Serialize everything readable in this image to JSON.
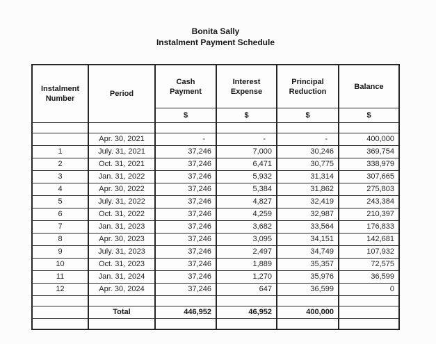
{
  "page": {
    "title_line1": "Bonita Sally",
    "title_line2": "Instalment Payment Schedule"
  },
  "colors": {
    "ink": "#1f1f1f",
    "border": "#262626",
    "background": "#fcfcfc"
  },
  "table": {
    "columns": [
      {
        "label": "Instalment Number"
      },
      {
        "label": "Period"
      },
      {
        "label": "Cash Payment"
      },
      {
        "label": "Interest Expense"
      },
      {
        "label": "Principal Reduction"
      },
      {
        "label": "Balance"
      }
    ],
    "currency_symbol": "$",
    "rows": [
      {
        "number": "",
        "period": "Apr. 30, 2021",
        "cash": "-",
        "interest": "-",
        "principal": "-",
        "balance": "400,000"
      },
      {
        "number": "1",
        "period": "July. 31, 2021",
        "cash": "37,246",
        "interest": "7,000",
        "principal": "30,246",
        "balance": "369,754"
      },
      {
        "number": "2",
        "period": "Oct. 31, 2021",
        "cash": "37,246",
        "interest": "6,471",
        "principal": "30,775",
        "balance": "338,979"
      },
      {
        "number": "3",
        "period": "Jan. 31, 2022",
        "cash": "37,246",
        "interest": "5,932",
        "principal": "31,314",
        "balance": "307,665"
      },
      {
        "number": "4",
        "period": "Apr. 30, 2022",
        "cash": "37,246",
        "interest": "5,384",
        "principal": "31,862",
        "balance": "275,803"
      },
      {
        "number": "5",
        "period": "July. 31, 2022",
        "cash": "37,246",
        "interest": "4,827",
        "principal": "32,419",
        "balance": "243,384"
      },
      {
        "number": "6",
        "period": "Oct. 31, 2022",
        "cash": "37,246",
        "interest": "4,259",
        "principal": "32,987",
        "balance": "210,397"
      },
      {
        "number": "7",
        "period": "Jan. 31, 2023",
        "cash": "37,246",
        "interest": "3,682",
        "principal": "33,564",
        "balance": "176,833"
      },
      {
        "number": "8",
        "period": "Apr. 30, 2023",
        "cash": "37,246",
        "interest": "3,095",
        "principal": "34,151",
        "balance": "142,681"
      },
      {
        "number": "9",
        "period": "July. 31, 2023",
        "cash": "37,246",
        "interest": "2,497",
        "principal": "34,749",
        "balance": "107,932"
      },
      {
        "number": "10",
        "period": "Oct. 31, 2023",
        "cash": "37,246",
        "interest": "1,889",
        "principal": "35,357",
        "balance": "72,575"
      },
      {
        "number": "11",
        "period": "Jan. 31, 2024",
        "cash": "37,246",
        "interest": "1,270",
        "principal": "35,976",
        "balance": "36,599"
      },
      {
        "number": "12",
        "period": "Apr. 30, 2024",
        "cash": "37,246",
        "interest": "647",
        "principal": "36,599",
        "balance": "0"
      }
    ],
    "total": {
      "label": "Total",
      "cash": "446,952",
      "interest": "46,952",
      "principal": "400,000"
    }
  }
}
